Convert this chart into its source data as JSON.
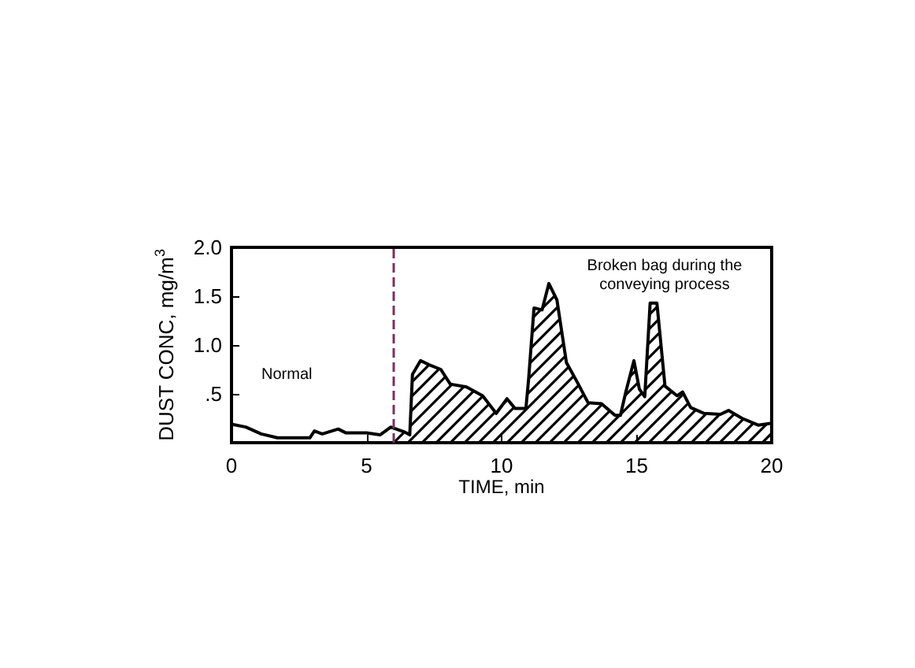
{
  "chart_data": {
    "type": "line",
    "xlabel": "TIME, min",
    "ylabel": "DUST CONC, mg/m$^{3}$",
    "xlim": [
      0,
      20
    ],
    "xticks": [
      0,
      5,
      10,
      15,
      20
    ],
    "ylim": [
      0,
      2
    ],
    "yticks": [
      {
        "value": 0.5,
        "label": ".5"
      },
      {
        "value": 1,
        "label": "1.0"
      },
      {
        "value": 1.5,
        "label": "1.5"
      },
      {
        "value": 2,
        "label": "2.0"
      }
    ],
    "grid": false,
    "annotations": [
      "Normal",
      "Broken bag during the conveying process"
    ],
    "ref_lines": [
      {
        "axis": "x",
        "value": 6,
        "label": null,
        "color": "#7a3060",
        "line_style": "dashed"
      }
    ],
    "series": [
      {
        "color": "#000000",
        "x": [
          0,
          0.53,
          1.1,
          1.7,
          2.9,
          3.07,
          3.36,
          3.95,
          4.24,
          5.0,
          5.5,
          5.9,
          6.0
        ],
        "values": [
          0.19,
          0.16,
          0.09,
          0.05,
          0.05,
          0.12,
          0.09,
          0.14,
          0.1,
          0.1,
          0.08,
          0.16,
          0.15
        ]
      },
      {
        "type": "area",
        "color": "#000000",
        "x": [
          6.0,
          6.4,
          6.6,
          6.7,
          7.0,
          7.3,
          7.75,
          8.1,
          8.7,
          9.3,
          9.8,
          10.2,
          10.5,
          10.9,
          11.0,
          11.2,
          11.5,
          11.75,
          12.05,
          12.4,
          12.8,
          13.2,
          13.7,
          14.2,
          14.4,
          14.6,
          14.9,
          15.1,
          15.3,
          15.5,
          15.75,
          16.05,
          16.5,
          16.7,
          17.0,
          17.5,
          18.1,
          18.4,
          18.9,
          19.5,
          20
        ],
        "values": [
          0.15,
          0.11,
          0.08,
          0.7,
          0.84,
          0.8,
          0.75,
          0.6,
          0.57,
          0.48,
          0.3,
          0.45,
          0.35,
          0.35,
          0.65,
          1.38,
          1.36,
          1.63,
          1.46,
          0.82,
          0.62,
          0.41,
          0.4,
          0.28,
          0.28,
          0.52,
          0.84,
          0.55,
          0.47,
          1.43,
          1.43,
          0.58,
          0.48,
          0.52,
          0.36,
          0.3,
          0.29,
          0.33,
          0.25,
          0.18,
          0.2
        ]
      }
    ]
  }
}
